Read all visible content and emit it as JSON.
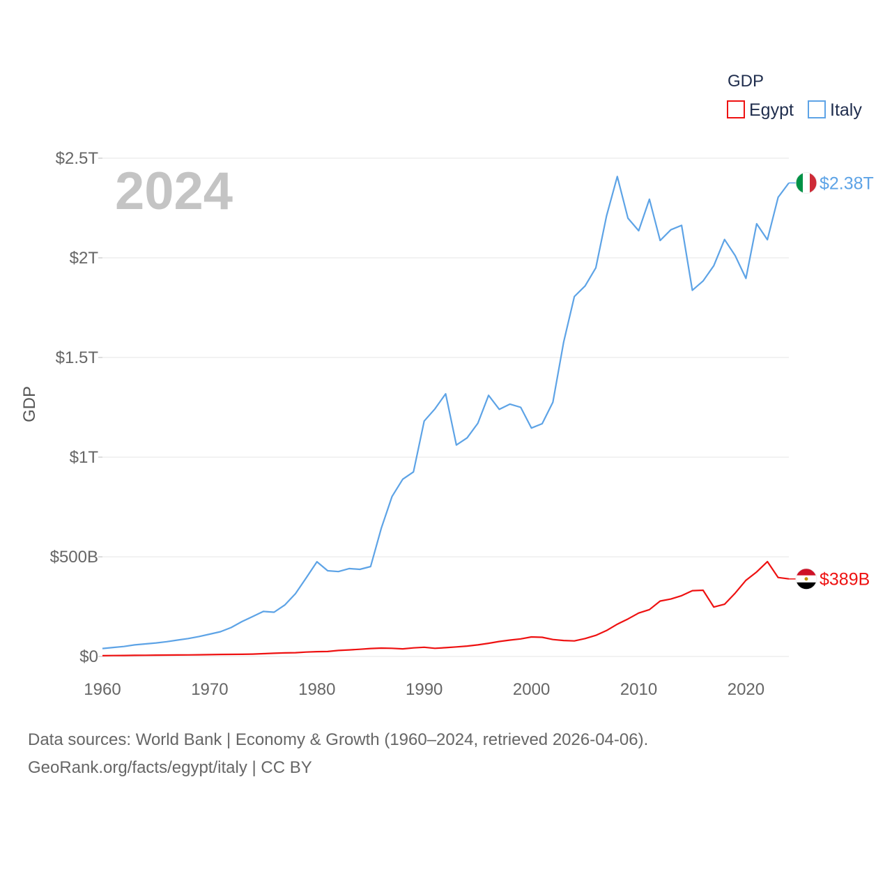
{
  "chart_data": {
    "type": "line",
    "current_year": "2024",
    "ylabel": "GDP",
    "ylim": [
      0,
      2500000000000
    ],
    "xlim": [
      1960,
      2024
    ],
    "y_ticks": [
      {
        "value": 0,
        "label": "$0"
      },
      {
        "value": 500000000000,
        "label": "$500B"
      },
      {
        "value": 1000000000000,
        "label": "$1T"
      },
      {
        "value": 1500000000000,
        "label": "$1.5T"
      },
      {
        "value": 2000000000000,
        "label": "$2T"
      },
      {
        "value": 2500000000000,
        "label": "$2.5T"
      }
    ],
    "x_ticks": [
      {
        "value": 1960,
        "label": "1960"
      },
      {
        "value": 1970,
        "label": "1970"
      },
      {
        "value": 1980,
        "label": "1980"
      },
      {
        "value": 1990,
        "label": "1990"
      },
      {
        "value": 2000,
        "label": "2000"
      },
      {
        "value": 2010,
        "label": "2010"
      },
      {
        "value": 2020,
        "label": "2020"
      }
    ],
    "legend": {
      "title": "GDP",
      "position": "top-right"
    },
    "x": [
      1960,
      1961,
      1962,
      1963,
      1964,
      1965,
      1966,
      1967,
      1968,
      1969,
      1970,
      1971,
      1972,
      1973,
      1974,
      1975,
      1976,
      1977,
      1978,
      1979,
      1980,
      1981,
      1982,
      1983,
      1984,
      1985,
      1986,
      1987,
      1988,
      1989,
      1990,
      1991,
      1992,
      1993,
      1994,
      1995,
      1996,
      1997,
      1998,
      1999,
      2000,
      2001,
      2002,
      2003,
      2004,
      2005,
      2006,
      2007,
      2008,
      2009,
      2010,
      2011,
      2012,
      2013,
      2014,
      2015,
      2016,
      2017,
      2018,
      2019,
      2020,
      2021,
      2022,
      2023,
      2024
    ],
    "series": [
      {
        "name": "Egypt",
        "color": "#ee1111",
        "end_label": "$389B",
        "flag": "egypt-flag-icon",
        "values": [
          4,
          4.5,
          5,
          5.5,
          6,
          6.5,
          7,
          7.3,
          7.8,
          8.5,
          9,
          10,
          10.5,
          11,
          12,
          14,
          16,
          18,
          19,
          22,
          24,
          25,
          30,
          33,
          36,
          40,
          42,
          41,
          38,
          43,
          46,
          41,
          44,
          48,
          52,
          58,
          66,
          75,
          82,
          88,
          98,
          96,
          85,
          80,
          78,
          90,
          106,
          130,
          162,
          188,
          218,
          235,
          278,
          288,
          305,
          330,
          332,
          248,
          262,
          318,
          382,
          424,
          476,
          396,
          389
        ]
      },
      {
        "name": "Italy",
        "color": "#5da3e6",
        "end_label": "$2.38T",
        "flag": "italy-flag-icon",
        "values": [
          40,
          45,
          50,
          58,
          63,
          68,
          74,
          82,
          90,
          100,
          112,
          124,
          145,
          175,
          200,
          226,
          222,
          258,
          315,
          394,
          475,
          430,
          426,
          441,
          437,
          451,
          644,
          802,
          889,
          926,
          1181,
          1242,
          1318,
          1061,
          1097,
          1170,
          1310,
          1240,
          1266,
          1250,
          1146,
          1168,
          1276,
          1577,
          1806,
          1859,
          1950,
          2211,
          2408,
          2199,
          2136,
          2294,
          2087,
          2141,
          2163,
          1837,
          1884,
          1961,
          2092,
          2011,
          1897,
          2171,
          2091,
          2304,
          2376
        ]
      }
    ]
  },
  "footer": {
    "line1": "Data sources: World Bank | Economy & Growth (1960–2024, retrieved 2026-04-06).",
    "line2": "GeoRank.org/facts/egypt/italy | CC BY"
  }
}
